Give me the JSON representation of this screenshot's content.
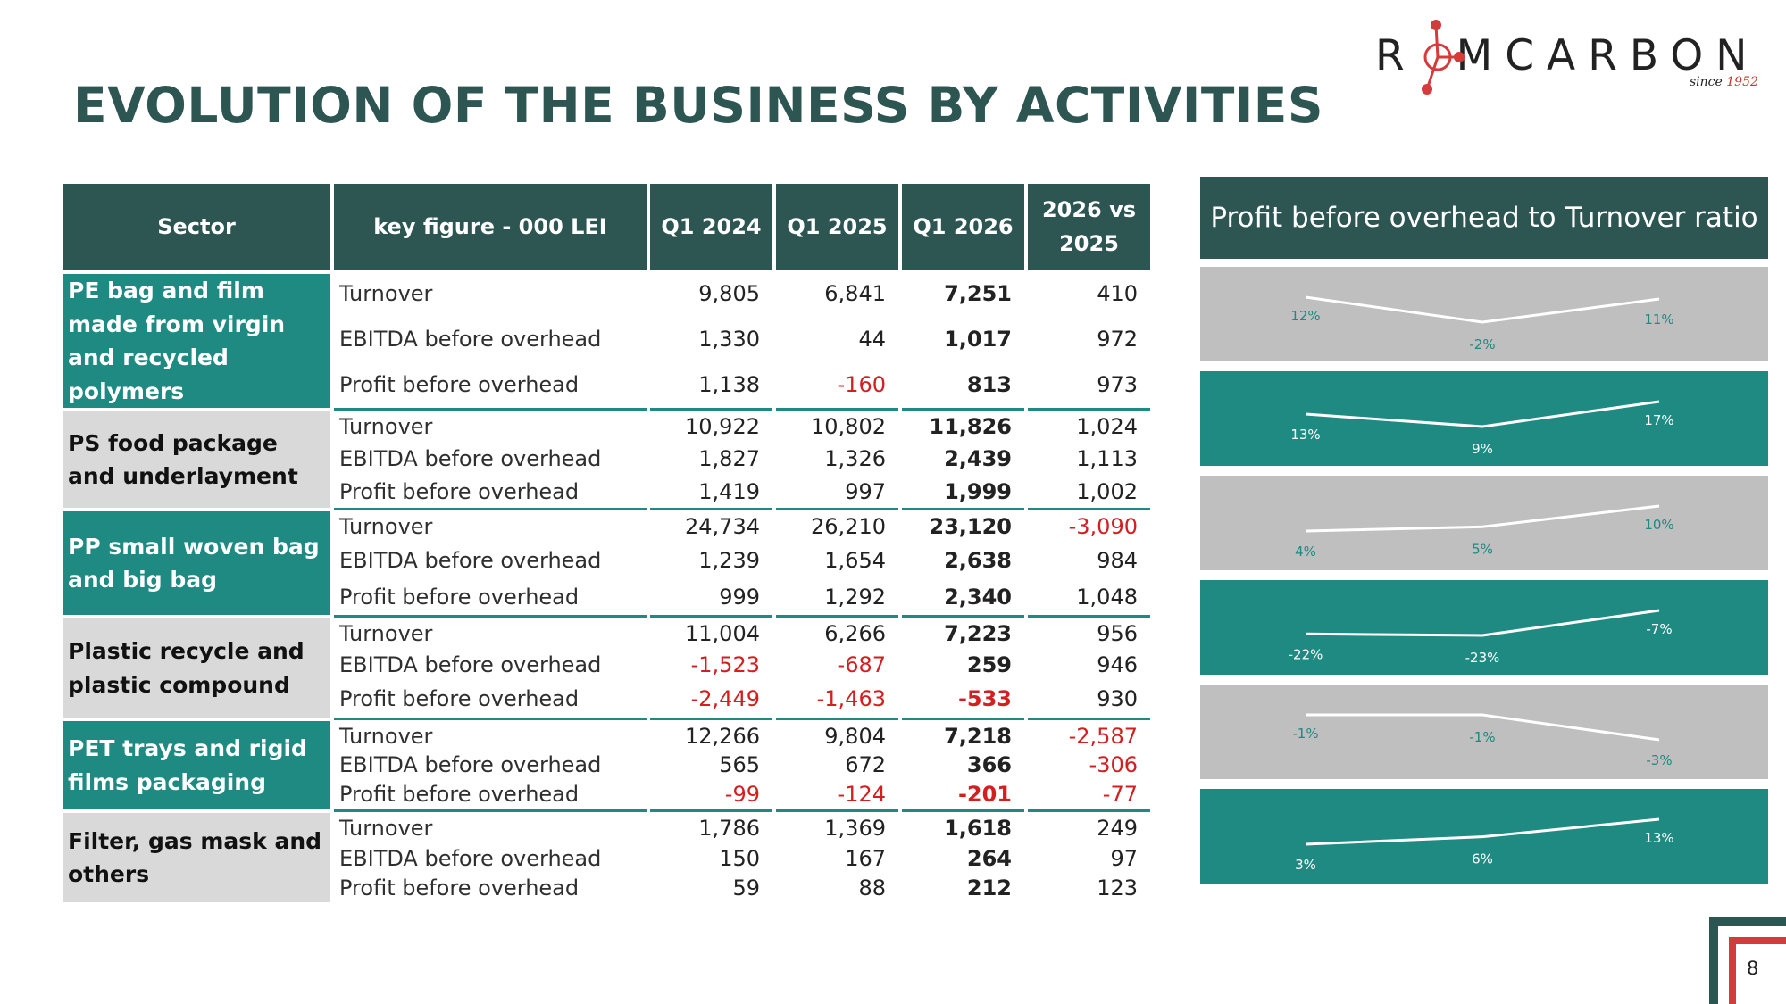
{
  "title": "EVOLUTION OF THE BUSINESS BY ACTIVITIES",
  "logo": {
    "name": "ROMCARBON",
    "since": "since",
    "year": "1952"
  },
  "table": {
    "headers": [
      "Sector",
      "key figure - 000 LEI",
      "Q1 2024",
      "Q1 2025",
      "Q1 2026",
      "2026 vs 2025"
    ],
    "sectors": [
      {
        "name": "PE bag and film made from virgin and recycled polymers",
        "style": "teal",
        "rows": [
          {
            "label": "Turnover",
            "values": [
              "9,805",
              "6,841",
              "7,251",
              "410"
            ]
          },
          {
            "label": "EBITDA before overhead",
            "values": [
              "1,330",
              "44",
              "1,017",
              "972"
            ]
          },
          {
            "label": "Profit before overhead",
            "values": [
              "1,138",
              "-160",
              "813",
              "973"
            ]
          }
        ]
      },
      {
        "name": "PS food package and underlayment",
        "style": "grey",
        "rows": [
          {
            "label": "Turnover",
            "values": [
              "10,922",
              "10,802",
              "11,826",
              "1,024"
            ]
          },
          {
            "label": "EBITDA before overhead",
            "values": [
              "1,827",
              "1,326",
              "2,439",
              "1,113"
            ]
          },
          {
            "label": "Profit before overhead",
            "values": [
              "1,419",
              "997",
              "1,999",
              "1,002"
            ]
          }
        ]
      },
      {
        "name": "PP small woven bag and big bag",
        "style": "teal",
        "rows": [
          {
            "label": "Turnover",
            "values": [
              "24,734",
              "26,210",
              "23,120",
              "-3,090"
            ]
          },
          {
            "label": "EBITDA before overhead",
            "values": [
              "1,239",
              "1,654",
              "2,638",
              "984"
            ]
          },
          {
            "label": "Profit before overhead",
            "values": [
              "999",
              "1,292",
              "2,340",
              "1,048"
            ]
          }
        ]
      },
      {
        "name": "Plastic recycle and plastic compound",
        "style": "grey",
        "rows": [
          {
            "label": "Turnover",
            "values": [
              "11,004",
              "6,266",
              "7,223",
              "956"
            ]
          },
          {
            "label": "EBITDA before overhead",
            "values": [
              "-1,523",
              "-687",
              "259",
              "946"
            ]
          },
          {
            "label": "Profit before overhead",
            "values": [
              "-2,449",
              "-1,463",
              "-533",
              "930"
            ]
          }
        ]
      },
      {
        "name": "PET trays and rigid films packaging",
        "style": "teal",
        "rows": [
          {
            "label": "Turnover",
            "values": [
              "12,266",
              "9,804",
              "7,218",
              "-2,587"
            ]
          },
          {
            "label": "EBITDA before overhead",
            "values": [
              "565",
              "672",
              "366",
              "-306"
            ]
          },
          {
            "label": "Profit before overhead",
            "values": [
              "-99",
              "-124",
              "-201",
              "-77"
            ]
          }
        ]
      },
      {
        "name": "Filter, gas mask and others",
        "style": "grey",
        "rows": [
          {
            "label": "Turnover",
            "values": [
              "1,786",
              "1,369",
              "1,618",
              "249"
            ]
          },
          {
            "label": "EBITDA before overhead",
            "values": [
              "150",
              "167",
              "264",
              "97"
            ]
          },
          {
            "label": "Profit before overhead",
            "values": [
              "59",
              "88",
              "212",
              "123"
            ]
          }
        ]
      }
    ]
  },
  "chart_data": {
    "type": "line",
    "title": "Profit before overhead to Turnover ratio",
    "unit": "%",
    "panels": [
      {
        "values": [
          12,
          -2,
          11
        ],
        "labels": [
          "12%",
          "-2%",
          "11%"
        ],
        "style": "grey"
      },
      {
        "values": [
          13,
          9,
          17
        ],
        "labels": [
          "13%",
          "9%",
          "17%"
        ],
        "style": "teal"
      },
      {
        "values": [
          4,
          5,
          10
        ],
        "labels": [
          "4%",
          "5%",
          "10%"
        ],
        "style": "grey"
      },
      {
        "values": [
          -22,
          -23,
          -7
        ],
        "labels": [
          "-22%",
          "-23%",
          "-7%"
        ],
        "style": "teal"
      },
      {
        "values": [
          -1,
          -1,
          -3
        ],
        "labels": [
          "-1%",
          "-1%",
          "-3%"
        ],
        "style": "grey"
      },
      {
        "values": [
          3,
          6,
          13
        ],
        "labels": [
          "3%",
          "6%",
          "13%"
        ],
        "style": "teal"
      }
    ]
  },
  "colors": {
    "dark_teal": "#2d5652",
    "teal": "#1e8a82",
    "grey": "#d9d9d9",
    "panel_grey": "#bfbfbf",
    "negative": "#d31f1f",
    "accent_red": "#d63b3b"
  },
  "page_number": "8"
}
